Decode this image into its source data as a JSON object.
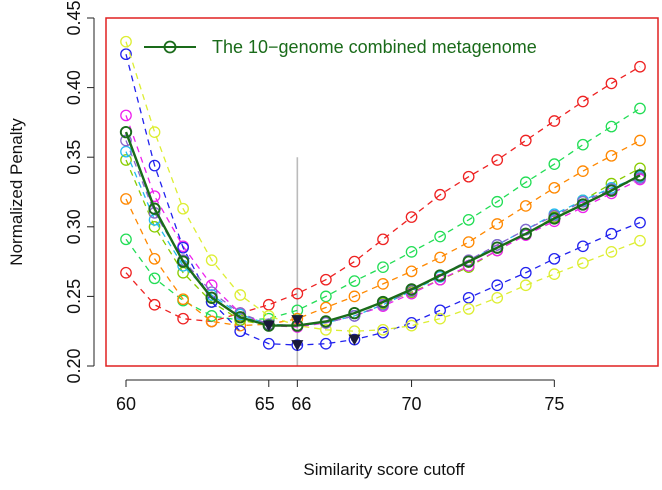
{
  "chart_data": {
    "type": "line",
    "title": "",
    "xlabel": "Similarity score cutoff",
    "ylabel": "Normalized Penalty",
    "xlim": [
      60,
      78
    ],
    "ylim": [
      0.2,
      0.45
    ],
    "x_ticks": [
      60,
      65,
      66,
      70,
      75
    ],
    "x_tick_labels": [
      "60",
      "65",
      "66",
      "70",
      "75"
    ],
    "y_ticks": [
      0.2,
      0.25,
      0.3,
      0.35,
      0.4,
      0.45
    ],
    "y_tick_labels": [
      "0.20",
      "0.25",
      "0.30",
      "0.35",
      "0.40",
      "0.45"
    ],
    "grid": false,
    "legend_position": "top-right",
    "reference_line_x": 66,
    "reference_line_range": [
      0.2,
      0.35
    ],
    "frame_color": "#e02020",
    "x": [
      60,
      61,
      62,
      63,
      64,
      65,
      66,
      67,
      68,
      69,
      70,
      71,
      72,
      73,
      74,
      75,
      76,
      77,
      78
    ],
    "series": [
      {
        "color": "#ee2222",
        "style": "dashed",
        "values": [
          0.267,
          0.244,
          0.234,
          0.232,
          0.238,
          0.244,
          0.252,
          0.262,
          0.275,
          0.291,
          0.307,
          0.323,
          0.336,
          0.348,
          0.362,
          0.376,
          0.39,
          0.403,
          0.415
        ]
      },
      {
        "color": "#22dd55",
        "style": "dashed",
        "values": [
          0.291,
          0.263,
          0.247,
          0.236,
          0.233,
          0.234,
          0.24,
          0.25,
          0.261,
          0.271,
          0.282,
          0.293,
          0.305,
          0.318,
          0.332,
          0.345,
          0.359,
          0.372,
          0.385
        ]
      },
      {
        "color": "#ff8800",
        "style": "dashed",
        "values": [
          0.32,
          0.277,
          0.248,
          0.232,
          0.229,
          0.23,
          0.234,
          0.242,
          0.25,
          0.259,
          0.268,
          0.278,
          0.289,
          0.302,
          0.315,
          0.328,
          0.34,
          0.351,
          0.362
        ]
      },
      {
        "color": "#88cc00",
        "style": "dashed",
        "values": [
          0.348,
          0.3,
          0.267,
          0.246,
          0.233,
          0.229,
          0.229,
          0.232,
          0.238,
          0.245,
          0.253,
          0.262,
          0.271,
          0.283,
          0.295,
          0.307,
          0.319,
          0.331,
          0.342
        ]
      },
      {
        "color": "#ee22ee",
        "style": "dashed",
        "values": [
          0.38,
          0.322,
          0.286,
          0.258,
          0.238,
          0.229,
          0.228,
          0.231,
          0.236,
          0.243,
          0.252,
          0.262,
          0.272,
          0.283,
          0.294,
          0.304,
          0.314,
          0.324,
          0.334
        ]
      },
      {
        "color": "#2222ee",
        "style": "dashed",
        "values": [
          0.424,
          0.344,
          0.285,
          0.246,
          0.225,
          0.216,
          0.215,
          0.216,
          0.219,
          0.224,
          0.231,
          0.24,
          0.249,
          0.258,
          0.267,
          0.277,
          0.286,
          0.295,
          0.303
        ]
      },
      {
        "color": "#ddee33",
        "style": "dashed",
        "values": [
          0.433,
          0.368,
          0.313,
          0.276,
          0.251,
          0.236,
          0.229,
          0.226,
          0.225,
          0.226,
          0.229,
          0.234,
          0.241,
          0.249,
          0.258,
          0.266,
          0.274,
          0.282,
          0.29
        ]
      },
      {
        "color": "#22bbee",
        "style": "dashed",
        "values": [
          0.354,
          0.305,
          0.272,
          0.251,
          0.237,
          0.23,
          0.229,
          0.231,
          0.236,
          0.244,
          0.254,
          0.264,
          0.275,
          0.287,
          0.298,
          0.309,
          0.319,
          0.328,
          0.336
        ]
      },
      {
        "color": "#8866cc",
        "style": "dashed",
        "values": [
          0.362,
          0.31,
          0.276,
          0.253,
          0.238,
          0.23,
          0.229,
          0.231,
          0.236,
          0.244,
          0.254,
          0.265,
          0.276,
          0.287,
          0.298,
          0.308,
          0.318,
          0.327,
          0.335
        ]
      },
      {
        "name": "The 10−genome combined metagenome",
        "color": "#1a6b1a",
        "style": "solid",
        "values": [
          0.368,
          0.313,
          0.275,
          0.249,
          0.235,
          0.229,
          0.229,
          0.232,
          0.238,
          0.246,
          0.255,
          0.265,
          0.275,
          0.285,
          0.295,
          0.306,
          0.316,
          0.326,
          0.337
        ]
      }
    ],
    "minimum_markers": [
      {
        "x": 65,
        "y": 0.229
      },
      {
        "x": 66,
        "y": 0.233
      },
      {
        "x": 66,
        "y": 0.215
      },
      {
        "x": 68,
        "y": 0.219
      }
    ]
  }
}
